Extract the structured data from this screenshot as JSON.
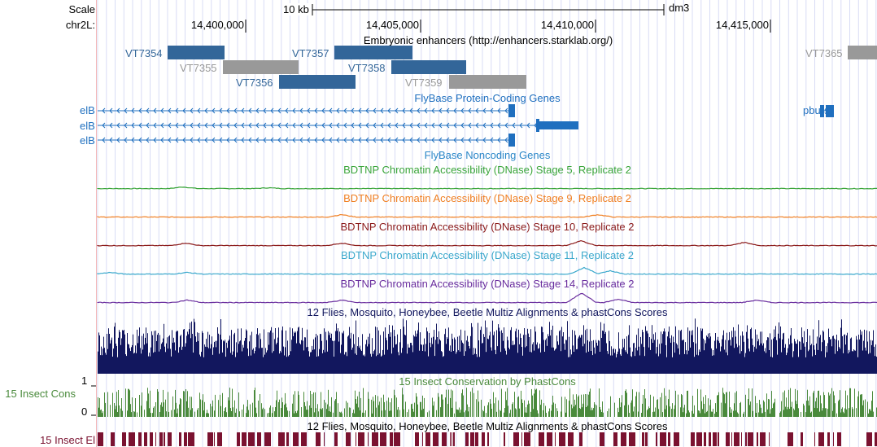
{
  "ruler": {
    "scale_label": "Scale",
    "chrom_label": "chr2L:",
    "scale_bar_text": "10 kb",
    "assembly": "dm3",
    "positions": [
      "14,400,000",
      "14,405,000",
      "14,410,000",
      "14,415,000"
    ]
  },
  "tracks": {
    "enhancers": {
      "title": "Embryonic enhancers (http://enhancers.starklab.org/)",
      "items": [
        {
          "name": "VT7354",
          "color": "#336699"
        },
        {
          "name": "VT7355",
          "color": "#999999"
        },
        {
          "name": "VT7356",
          "color": "#336699"
        },
        {
          "name": "VT7357",
          "color": "#336699"
        },
        {
          "name": "VT7358",
          "color": "#336699"
        },
        {
          "name": "VT7359",
          "color": "#999999"
        },
        {
          "name": "VT7365",
          "color": "#999999"
        }
      ]
    },
    "flybase_coding": {
      "title": "FlyBase Protein-Coding Genes",
      "color": "#1f6fbf",
      "genes": [
        "elB",
        "elB",
        "elB",
        "pburs"
      ]
    },
    "flybase_noncoding": {
      "title": "FlyBase Noncoding Genes",
      "color": "#2a86c8"
    },
    "dnase": [
      {
        "title": "BDTNP Chromatin Accessibility (DNase) Stage 5, Replicate 2",
        "color": "#3aa53a"
      },
      {
        "title": "BDTNP Chromatin Accessibility (DNase) Stage 9, Replicate 2",
        "color": "#f07f22"
      },
      {
        "title": "BDTNP Chromatin Accessibility (DNase) Stage 10, Replicate 2",
        "color": "#8b1a1a"
      },
      {
        "title": "BDTNP Chromatin Accessibility (DNase) Stage 11, Replicate 2",
        "color": "#3aa8cc"
      },
      {
        "title": "BDTNP Chromatin Accessibility (DNase) Stage 14, Replicate 2",
        "color": "#6a2e9e"
      }
    ],
    "multiz": {
      "title": "12 Flies, Mosquito, Honeybee, Beetle Multiz Alignments & phastCons Scores",
      "color": "#12175e"
    },
    "insect_cons": {
      "side_label": "15 Insect Cons",
      "title": "15 Insect Conservation by PhastCons",
      "ymax": "1",
      "ymin": "0",
      "color": "#4a8a3c"
    },
    "insect_el": {
      "side_label": "15 Insect El",
      "title": "12 Flies, Mosquito, Honeybee, Beetle Multiz Alignments & phastCons Scores",
      "color": "#7a1230"
    }
  }
}
